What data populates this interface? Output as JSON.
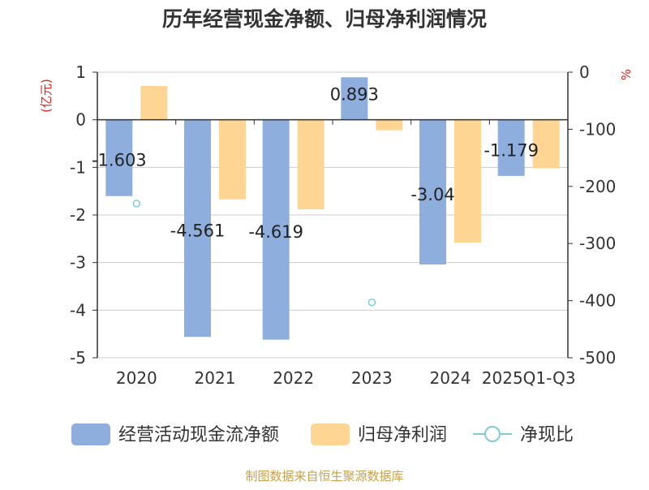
{
  "chart_data": {
    "type": "bar",
    "title": "历年经营现金净额、归母净利润情况",
    "ylabel_left": "(亿元)",
    "ylabel_right": "%",
    "categories": [
      "2020",
      "2021",
      "2022",
      "2023",
      "2024",
      "2025Q1-Q3"
    ],
    "ylim_left": [
      -5,
      1
    ],
    "ylim_right": [
      -500,
      0
    ],
    "left_ticks": [
      1,
      0,
      -1,
      -2,
      -3,
      -4,
      -5
    ],
    "right_ticks": [
      0,
      -100,
      -200,
      -300,
      -400,
      -500
    ],
    "grid": true,
    "legend_position": "bottom",
    "series": [
      {
        "name": "经营活动现金流净额",
        "type": "bar",
        "axis": "left",
        "color": "#8eaedd",
        "values": [
          -1.603,
          -4.561,
          -4.619,
          0.893,
          -3.04,
          -1.179
        ],
        "data_labels": [
          "-1.603",
          "-4.561",
          "-4.619",
          "0.893",
          "-3.04",
          "-1.179"
        ]
      },
      {
        "name": "归母净利润",
        "type": "bar",
        "axis": "left",
        "color": "#fed593",
        "values": [
          0.71,
          -1.67,
          -1.88,
          -0.22,
          -2.58,
          -1.02
        ]
      },
      {
        "name": "净现比",
        "type": "scatter",
        "axis": "right",
        "color": "#7fcbd9",
        "values": [
          -230,
          null,
          null,
          -403,
          null,
          null
        ]
      }
    ]
  },
  "source": "制图数据来自恒生聚源数据库"
}
